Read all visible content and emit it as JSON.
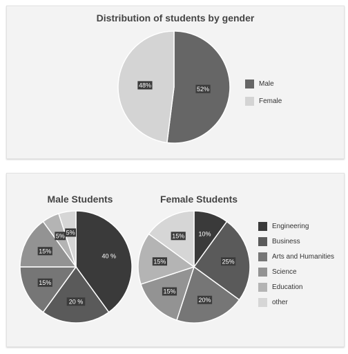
{
  "colors": {
    "male": "#666666",
    "female": "#d4d4d4",
    "engineering": "#3a3a3a",
    "business": "#5a5a5a",
    "arts_and_humanities": "#767676",
    "science": "#939393",
    "education": "#b4b4b4",
    "other": "#d6d6d6",
    "label_box": "#3b3b3b"
  },
  "chart_data": [
    {
      "id": "gender",
      "type": "pie",
      "title": "Distribution of students by gender",
      "legend_position": "right",
      "slices": [
        {
          "name": "Male",
          "value": 52,
          "label": "52%",
          "color": "#666666"
        },
        {
          "name": "Female",
          "value": 48,
          "label": "48%",
          "color": "#d4d4d4"
        }
      ]
    },
    {
      "id": "male",
      "type": "pie",
      "title": "Male Students",
      "legend_position": "right",
      "slices": [
        {
          "name": "Engineering",
          "value": 40,
          "label": "40 %",
          "color": "#3a3a3a"
        },
        {
          "name": "Business",
          "value": 20,
          "label": "20 %",
          "color": "#5a5a5a"
        },
        {
          "name": "Arts and Humanities",
          "value": 15,
          "label": "15%",
          "color": "#767676"
        },
        {
          "name": "Science",
          "value": 15,
          "label": "15%",
          "color": "#939393"
        },
        {
          "name": "Education",
          "value": 5,
          "label": "5%",
          "color": "#b4b4b4"
        },
        {
          "name": "other",
          "value": 5,
          "label": "5%",
          "color": "#d6d6d6"
        }
      ]
    },
    {
      "id": "female",
      "type": "pie",
      "title": "Female Students",
      "legend_position": "right",
      "slices": [
        {
          "name": "Engineering",
          "value": 10,
          "label": "10%",
          "color": "#3a3a3a"
        },
        {
          "name": "Business",
          "value": 25,
          "label": "25%",
          "color": "#5a5a5a"
        },
        {
          "name": "Arts and Humanities",
          "value": 20,
          "label": "20%",
          "color": "#767676"
        },
        {
          "name": "Science",
          "value": 15,
          "label": "15%",
          "color": "#939393"
        },
        {
          "name": "Education",
          "value": 15,
          "label": "15%",
          "color": "#b4b4b4"
        },
        {
          "name": "other",
          "value": 15,
          "label": "15%",
          "color": "#d6d6d6"
        }
      ]
    }
  ],
  "legends": {
    "gender": [
      {
        "label": "Male",
        "color": "#666666"
      },
      {
        "label": "Female",
        "color": "#d4d4d4"
      }
    ],
    "fields": [
      {
        "label": "Engineering",
        "color": "#3a3a3a"
      },
      {
        "label": "Business",
        "color": "#5a5a5a"
      },
      {
        "label": "Arts and Humanities",
        "color": "#767676"
      },
      {
        "label": "Science",
        "color": "#939393"
      },
      {
        "label": "Education",
        "color": "#b4b4b4"
      },
      {
        "label": "other",
        "color": "#d6d6d6"
      }
    ]
  }
}
